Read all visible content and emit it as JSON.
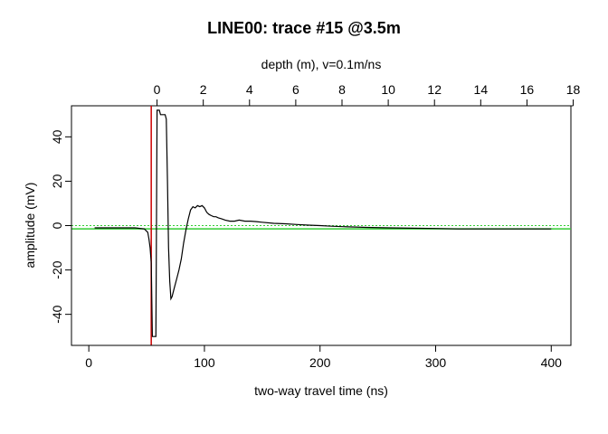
{
  "chart_data": {
    "type": "line",
    "title": "LINE00: trace #15 @3.5m",
    "xlabel": "two-way travel time (ns)",
    "ylabel": "amplitude (mV)",
    "top_axis_label": "depth (m),   v=0.1m/ns",
    "xlim": [
      -15,
      417
    ],
    "ylim": [
      -54,
      54
    ],
    "x_ticks": [
      0,
      100,
      200,
      300,
      400
    ],
    "y_ticks": [
      -40,
      -20,
      0,
      20,
      40
    ],
    "top_ticks": [
      0,
      2,
      4,
      6,
      8,
      10,
      12,
      14,
      16,
      18
    ],
    "top_axis_zero_ns": 59,
    "top_axis_ns_per_m": 20,
    "colors": {
      "trace": "#000000",
      "time_zero": "#cc0000",
      "baseline": "#33cc33",
      "zero_line": "#33cc33"
    },
    "time_zero_ns": 54,
    "baseline_mV": -1.5,
    "series": [
      {
        "values": [
          [
            5,
            -1
          ],
          [
            20,
            -1
          ],
          [
            40,
            -1
          ],
          [
            48,
            -1.5
          ],
          [
            51,
            -3
          ],
          [
            52,
            -6
          ],
          [
            53,
            -10
          ],
          [
            54,
            -17
          ],
          [
            55,
            -50
          ],
          [
            56,
            -50
          ],
          [
            57,
            -50
          ],
          [
            58,
            -50
          ],
          [
            59,
            52
          ],
          [
            60,
            52
          ],
          [
            61,
            52
          ],
          [
            62,
            50
          ],
          [
            63,
            50
          ],
          [
            64,
            50
          ],
          [
            65,
            50
          ],
          [
            66,
            50
          ],
          [
            67,
            48
          ],
          [
            68,
            20
          ],
          [
            69,
            -10
          ],
          [
            70,
            -25
          ],
          [
            71,
            -33
          ],
          [
            72,
            -32
          ],
          [
            74,
            -28
          ],
          [
            76,
            -24
          ],
          [
            78,
            -20
          ],
          [
            80,
            -15
          ],
          [
            82,
            -8
          ],
          [
            84,
            -2
          ],
          [
            86,
            3
          ],
          [
            88,
            7
          ],
          [
            90,
            8.5
          ],
          [
            92,
            8
          ],
          [
            94,
            9
          ],
          [
            96,
            8.5
          ],
          [
            98,
            9
          ],
          [
            100,
            8
          ],
          [
            102,
            6
          ],
          [
            104,
            5
          ],
          [
            106,
            4.5
          ],
          [
            108,
            4
          ],
          [
            110,
            4
          ],
          [
            112,
            3.5
          ],
          [
            115,
            3
          ],
          [
            118,
            2.5
          ],
          [
            122,
            2
          ],
          [
            126,
            2
          ],
          [
            130,
            2.5
          ],
          [
            135,
            2
          ],
          [
            140,
            2
          ],
          [
            145,
            1.8
          ],
          [
            150,
            1.5
          ],
          [
            160,
            1
          ],
          [
            170,
            0.8
          ],
          [
            180,
            0.5
          ],
          [
            190,
            0.2
          ],
          [
            200,
            0
          ],
          [
            210,
            -0.3
          ],
          [
            220,
            -0.5
          ],
          [
            240,
            -0.8
          ],
          [
            260,
            -1
          ],
          [
            280,
            -1.2
          ],
          [
            300,
            -1.3
          ],
          [
            320,
            -1.5
          ],
          [
            350,
            -1.5
          ],
          [
            380,
            -1.5
          ],
          [
            400,
            -1.5
          ]
        ]
      }
    ],
    "grid": false,
    "legend": "none"
  }
}
